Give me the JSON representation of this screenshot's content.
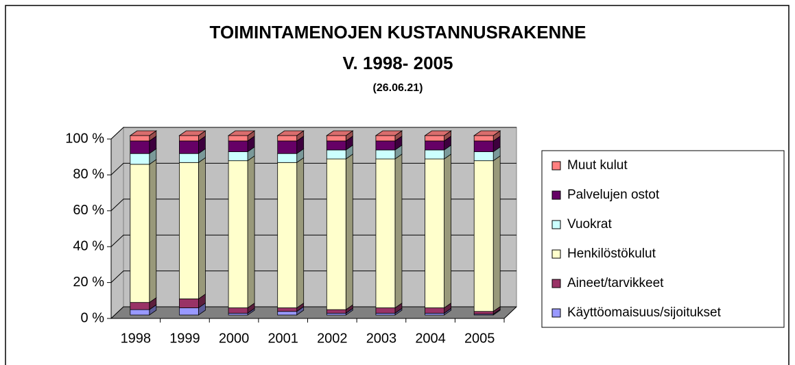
{
  "chart_data": {
    "type": "stacked_bar_3d",
    "title": "TOIMINTAMENOJEN KUSTANNUSRAKENNE",
    "subtitle": "V. 1998- 2005",
    "note": "(26.06.21)",
    "categories": [
      "1998",
      "1999",
      "2000",
      "2001",
      "2002",
      "2003",
      "2004",
      "2005"
    ],
    "series": [
      {
        "name": "Käyttöomaisuus/sijoitukset",
        "color": "#9999ff",
        "values": [
          3,
          4,
          1,
          2,
          1,
          1,
          1,
          0.5
        ]
      },
      {
        "name": "Aineet/tarvikkeet",
        "color": "#993366",
        "values": [
          4,
          5,
          3,
          2,
          2,
          3,
          3,
          1.5
        ]
      },
      {
        "name": "Henkilöstökulut",
        "color": "#ffffcc",
        "values": [
          77,
          76,
          82,
          81,
          84,
          83,
          83,
          84
        ]
      },
      {
        "name": "Vuokrat",
        "color": "#ccffff",
        "values": [
          6,
          5,
          5,
          5,
          5,
          5,
          5,
          5
        ]
      },
      {
        "name": "Palvelujen ostot",
        "color": "#660066",
        "values": [
          7,
          7,
          6,
          7,
          5,
          5,
          5,
          6
        ]
      },
      {
        "name": "Muut kulut",
        "color": "#ff8080",
        "values": [
          3,
          3,
          3,
          3,
          3,
          3,
          3,
          3
        ]
      }
    ],
    "ylim": [
      0,
      100
    ],
    "yticks": [
      {
        "value": 0,
        "label": "0 %"
      },
      {
        "value": 20,
        "label": "20 %"
      },
      {
        "value": 40,
        "label": "40 %"
      },
      {
        "value": 60,
        "label": "60 %"
      },
      {
        "value": 80,
        "label": "80 %"
      },
      {
        "value": 100,
        "label": "100 %"
      }
    ],
    "grid": true,
    "legend": "right"
  }
}
